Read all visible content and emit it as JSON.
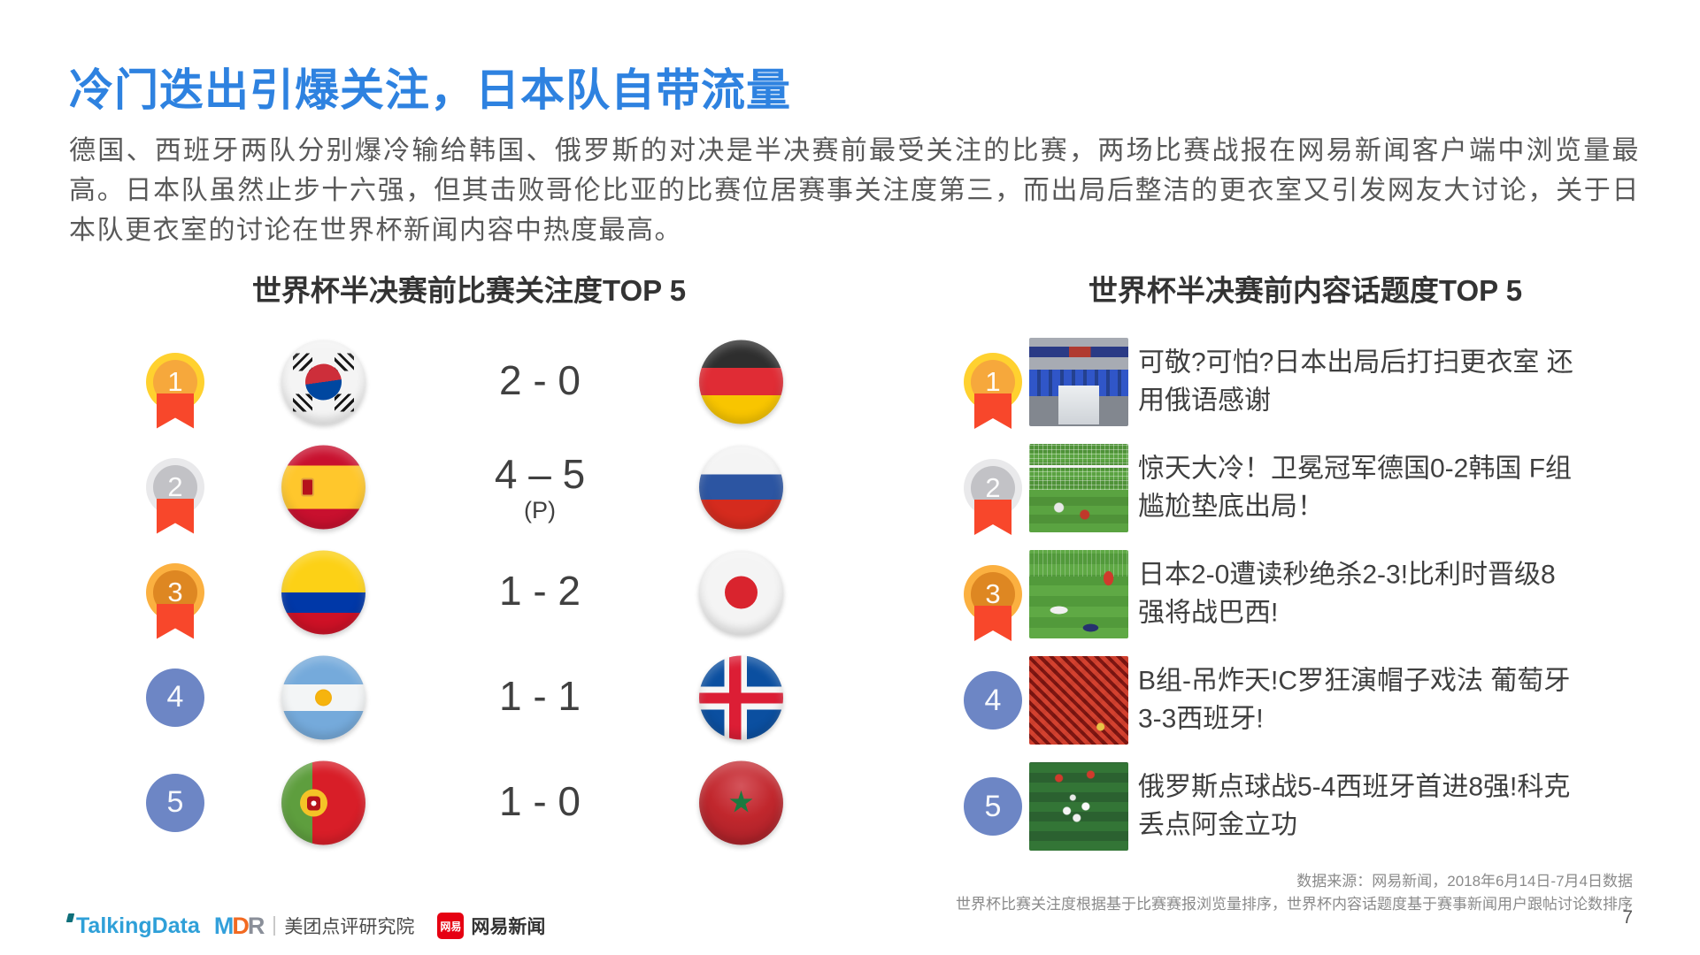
{
  "page": {
    "title": "冷门迭出引爆关注，日本队自带流量",
    "paragraph": "德国、西班牙两队分别爆冷输给韩国、俄罗斯的对决是半决赛前最受关注的比赛，两场比赛战报在网易新闻客户端中浏览量最高。日本队虽然止步十六强，但其击败哥伦比亚的比赛位居赛事关注度第三，而出局后整洁的更衣室又引发网友大讨论，关于日本队更衣室的讨论在世界杯新闻内容中热度最高。",
    "page_number": "7"
  },
  "left_section": {
    "title": "世界杯半决赛前比赛关注度TOP 5",
    "rows": [
      {
        "rank": "1",
        "home_flag": "south-korea",
        "score": "2 - 0",
        "score_note": "",
        "away_flag": "germany"
      },
      {
        "rank": "2",
        "home_flag": "spain",
        "score": "4 – 5",
        "score_note": "(P)",
        "away_flag": "russia"
      },
      {
        "rank": "3",
        "home_flag": "colombia",
        "score": "1 - 2",
        "score_note": "",
        "away_flag": "japan"
      },
      {
        "rank": "4",
        "home_flag": "argentina",
        "score": "1 - 1",
        "score_note": "",
        "away_flag": "iceland"
      },
      {
        "rank": "5",
        "home_flag": "portugal",
        "score": "1 - 0",
        "score_note": "",
        "away_flag": "morocco"
      }
    ]
  },
  "right_section": {
    "title": "世界杯半决赛前内容话题度TOP 5",
    "rows": [
      {
        "rank": "1",
        "thumbnail": "locker-room",
        "headline": "可敬?可怕?日本出局后打扫更衣室 还\n用俄语感谢"
      },
      {
        "rank": "2",
        "thumbnail": "goal-net",
        "headline": "惊天大冷！卫冕冠军德国0-2韩国 F组\n尴尬垫底出局！"
      },
      {
        "rank": "3",
        "thumbnail": "players-down",
        "headline": "日本2-0遭读秒绝杀2-3!比利时晋级8\n强将战巴西!"
      },
      {
        "rank": "4",
        "thumbnail": "red-fans",
        "headline": "B组-吊炸天!C罗狂演帽子戏法 葡萄牙\n3-3西班牙!"
      },
      {
        "rank": "5",
        "thumbnail": "celebration",
        "headline": "俄罗斯点球战5-4西班牙首进8强!科克\n丢点阿金立功"
      }
    ]
  },
  "footer": {
    "source_line1": "数据来源：网易新闻，2018年6月14日-7月4日数据",
    "source_line2": "世界杯比赛关注度根据基于比赛赛报浏览量排序，世界杯内容话题度基于赛事新闻用户跟帖讨论数排序",
    "logos": {
      "talkingdata": "TalkingData",
      "mdr": "MDR",
      "meituan": "美团点评研究院",
      "netease_badge": "网易",
      "netease": "网易新闻"
    }
  },
  "colors": {
    "title_blue": "#2E82E0",
    "medal_gold": "#FFD12F",
    "medal_silver": "#E9E9EB",
    "medal_bronze": "#FBB040",
    "ribbon_red": "#F8472B",
    "rank_circle_blue": "#6D86C5",
    "talkingdata_blue": "#2FA0D8",
    "netease_red": "#E60012"
  }
}
